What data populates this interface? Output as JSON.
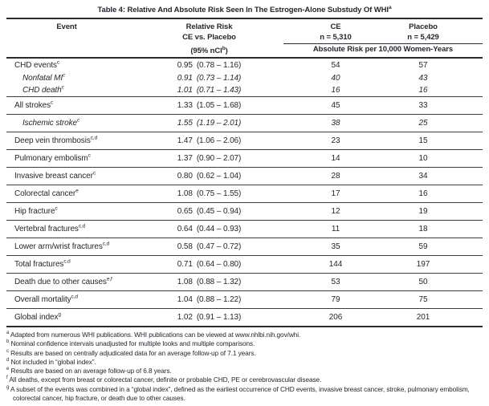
{
  "title": "Table 4: Relative And Absolute Risk Seen In The Estrogen-Alone Substudy Of WHI",
  "title_sup": "a",
  "header": {
    "event": "Event",
    "rr_line1": "Relative Risk",
    "rr_line2": "CE vs. Placebo",
    "rr_ci_pre": "(95% nCI",
    "rr_ci_sup": "b",
    "rr_ci_post": ")",
    "ce_label": "CE",
    "ce_n": "n = 5,310",
    "placebo_label": "Placebo",
    "placebo_n": "n = 5,429",
    "absolute_risk_label": "Absolute Risk per 10,000 Women-Years"
  },
  "rows": [
    {
      "event": "CHD events",
      "sup": "c",
      "rr": "0.95",
      "ci": "(0.78 – 1.16)",
      "ce": "54",
      "placebo": "57",
      "italic": false,
      "indent": false,
      "rule_above": false,
      "compact": false,
      "first": true
    },
    {
      "event": "Nonfatal MI",
      "sup": "c",
      "rr": "0.91",
      "ci": "(0.73 – 1.14)",
      "ce": "40",
      "placebo": "43",
      "italic": true,
      "indent": true,
      "rule_above": false,
      "compact": true,
      "first": false
    },
    {
      "event": "CHD death",
      "sup": "c",
      "rr": "1.01",
      "ci": "(0.71 – 1.43)",
      "ce": "16",
      "placebo": "16",
      "italic": true,
      "indent": true,
      "rule_above": false,
      "compact": true,
      "first": false
    },
    {
      "event": "All strokes",
      "sup": "c",
      "rr": "1.33",
      "ci": "(1.05 – 1.68)",
      "ce": "45",
      "placebo": "33",
      "italic": false,
      "indent": false,
      "rule_above": true,
      "compact": false,
      "first": false
    },
    {
      "event": "Ischemic stroke",
      "sup": "c",
      "rr": "1.55",
      "ci": "(1.19 – 2.01)",
      "ce": "38",
      "placebo": "25",
      "italic": true,
      "indent": true,
      "rule_above": true,
      "compact": false,
      "first": false
    },
    {
      "event": "Deep vein thrombosis",
      "sup": "c,d",
      "rr": "1.47",
      "ci": "(1.06 – 2.06)",
      "ce": "23",
      "placebo": "15",
      "italic": false,
      "indent": false,
      "rule_above": true,
      "compact": false,
      "first": false
    },
    {
      "event": "Pulmonary embolism",
      "sup": "c",
      "rr": "1.37",
      "ci": "(0.90 – 2.07)",
      "ce": "14",
      "placebo": "10",
      "italic": false,
      "indent": false,
      "rule_above": true,
      "compact": false,
      "first": false
    },
    {
      "event": "Invasive breast cancer",
      "sup": "c",
      "rr": "0.80",
      "ci": "(0.62 – 1.04)",
      "ce": "28",
      "placebo": "34",
      "italic": false,
      "indent": false,
      "rule_above": true,
      "compact": false,
      "first": false
    },
    {
      "event": "Colorectal cancer",
      "sup": "e",
      "rr": "1.08",
      "ci": "(0.75 – 1.55)",
      "ce": "17",
      "placebo": "16",
      "italic": false,
      "indent": false,
      "rule_above": true,
      "compact": false,
      "first": false
    },
    {
      "event": "Hip fracture",
      "sup": "c",
      "rr": "0.65",
      "ci": "(0.45 – 0.94)",
      "ce": "12",
      "placebo": "19",
      "italic": false,
      "indent": false,
      "rule_above": true,
      "compact": false,
      "first": false
    },
    {
      "event": "Vertebral fractures",
      "sup": "c,d",
      "rr": "0.64",
      "ci": "(0.44 – 0.93)",
      "ce": "11",
      "placebo": "18",
      "italic": false,
      "indent": false,
      "rule_above": true,
      "compact": false,
      "first": false
    },
    {
      "event": "Lower arm/wrist fractures",
      "sup": "c,d",
      "rr": "0.58",
      "ci": "(0.47 – 0.72)",
      "ce": "35",
      "placebo": "59",
      "italic": false,
      "indent": false,
      "rule_above": true,
      "compact": false,
      "first": false
    },
    {
      "event": "Total fractures",
      "sup": "c,d",
      "rr": "0.71",
      "ci": "(0.64 – 0.80)",
      "ce": "144",
      "placebo": "197",
      "italic": false,
      "indent": false,
      "rule_above": true,
      "compact": false,
      "first": false
    },
    {
      "event": "Death due to other causes",
      "sup": "e,f",
      "rr": "1.08",
      "ci": "(0.88 – 1.32)",
      "ce": "53",
      "placebo": "50",
      "italic": false,
      "indent": false,
      "rule_above": true,
      "compact": false,
      "first": false
    },
    {
      "event": "Overall mortality",
      "sup": "c,d",
      "rr": "1.04",
      "ci": "(0.88 – 1.22)",
      "ce": "79",
      "placebo": "75",
      "italic": false,
      "indent": false,
      "rule_above": true,
      "compact": false,
      "first": false
    },
    {
      "event": "Global index",
      "sup": "g",
      "rr": "1.02",
      "ci": "(0.91 – 1.13)",
      "ce": "206",
      "placebo": "201",
      "italic": false,
      "indent": false,
      "rule_above": true,
      "compact": false,
      "first": false
    }
  ],
  "footnotes": [
    {
      "marker": "a",
      "text": "Adapted from numerous WHI publications. WHI publications can be viewed at www.nhlbi.nih.gov/whi."
    },
    {
      "marker": "b",
      "text": "Nominal confidence intervals unadjusted for multiple looks and multiple comparisons."
    },
    {
      "marker": "c",
      "text": "Results are based on centrally adjudicated data for an average follow-up of 7.1 years."
    },
    {
      "marker": "d",
      "text": "Not included in “global index”."
    },
    {
      "marker": "e",
      "text": "Results are based on an average follow-up of 6.8 years."
    },
    {
      "marker": "f",
      "text": "All deaths, except from breast or colorectal cancer, definite or probable CHD, PE or cerebrovascular disease."
    },
    {
      "marker": "g",
      "text": "A subset of the events was combined in a “global index”, defined as the earliest occurrence of CHD events, invasive breast cancer, stroke, pulmonary embolism, colorectal  cancer, hip fracture, or death due to other causes."
    }
  ]
}
